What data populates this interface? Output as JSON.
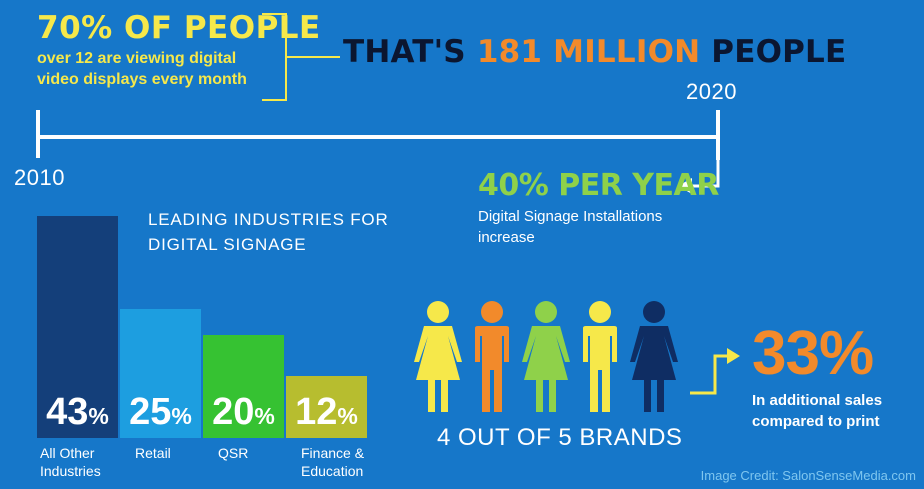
{
  "stat": {
    "percent_text": "70% OF PEOPLE",
    "description": "over 12 are viewing digital video displays every month"
  },
  "headline": {
    "prefix": "THAT'S ",
    "number": "181 MILLION",
    "suffix": " PEOPLE"
  },
  "timeline": {
    "start_year": "2010",
    "end_year": "2020"
  },
  "growth": {
    "title": "40% PER YEAR",
    "description": "Digital Signage Installations increase"
  },
  "industries": {
    "heading": "LEADING INDUSTRIES FOR DIGITAL SIGNAGE",
    "bars": [
      {
        "value": "43",
        "unit": "%",
        "label": "All Other\nIndustries",
        "share": 0.43,
        "color": "#143f7a"
      },
      {
        "value": "25",
        "unit": "%",
        "label": "Retail",
        "share": 0.25,
        "color": "#1d9ee0"
      },
      {
        "value": "20",
        "unit": "%",
        "label": "QSR",
        "share": 0.2,
        "color": "#36c232"
      },
      {
        "value": "12",
        "unit": "%",
        "label": "Finance &\nEducation",
        "share": 0.12,
        "color": "#b7bd2f"
      }
    ]
  },
  "brands": {
    "caption": "4 OUT OF 5 BRANDS",
    "figure_colors": [
      "#f6e84a",
      "#f28a2b",
      "#8fd14a",
      "#f6e84a",
      "#0f2d63"
    ]
  },
  "sales": {
    "percent": "33%",
    "description": "In additional sales compared to print"
  },
  "credit": "Image Credit: SalonSenseMedia.com",
  "colors": {
    "background": "#1677c9",
    "yellow": "#f6e84a",
    "orange": "#f28a2b",
    "green": "#8fd14a",
    "navy": "#0b1630"
  }
}
